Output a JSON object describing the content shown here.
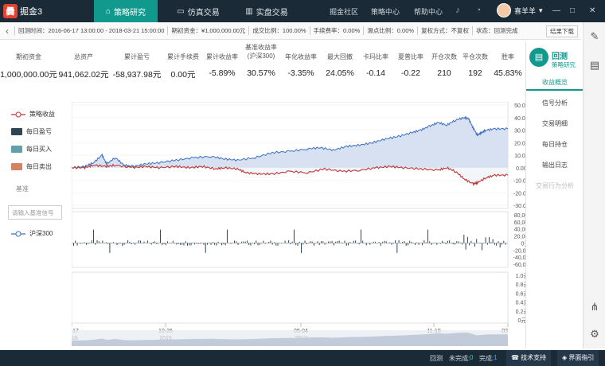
{
  "app": {
    "logo_mark": "爨",
    "logo_text": "掘金3"
  },
  "topnav": {
    "tabs": [
      {
        "label": "策略研究",
        "icon": "grad-cap-icon",
        "active": true
      },
      {
        "label": "仿真交易",
        "icon": "monitor-icon",
        "active": false
      },
      {
        "label": "实盘交易",
        "icon": "chart-bar-icon",
        "active": false
      }
    ],
    "links": [
      "掘金社区",
      "策略中心",
      "帮助中心"
    ],
    "user": "喜羊羊",
    "window_controls": [
      "—",
      "□",
      "✕"
    ]
  },
  "infobar": {
    "items": [
      "回测时间：2016-06-17 13:00:00 - 2018-03-21 15:00:00",
      "期初资金：¥1,000,000.00元",
      "成交比例：100.00%",
      "手续费率：0.00%",
      "滑点比例：0.00%",
      "复权方式：不复权",
      "状态：回测完成"
    ],
    "download_label": "结果下载"
  },
  "metrics": [
    {
      "label": "期初资金",
      "value": "1,000,000.00元"
    },
    {
      "label": "总资产",
      "value": "941,062.02元"
    },
    {
      "label": "累计盈亏",
      "value": "-58,937.98元"
    },
    {
      "label": "累计手续费",
      "value": "0.00元"
    },
    {
      "label": "累计收益率",
      "value": "-5.89%"
    },
    {
      "label": "基准收益率(沪深300)",
      "value": "30.57%"
    },
    {
      "label": "年化收益率",
      "value": "-3.35%"
    },
    {
      "label": "最大回撤",
      "value": "24.05%"
    },
    {
      "label": "卡玛比率",
      "value": "-0.14"
    },
    {
      "label": "夏普比率",
      "value": "-0.22"
    },
    {
      "label": "开仓次数",
      "value": "210"
    },
    {
      "label": "平仓次数",
      "value": "192"
    },
    {
      "label": "胜率",
      "value": "45.83%"
    }
  ],
  "legend": {
    "items": [
      {
        "label": "策略收益",
        "color": "#c23531",
        "kind": "line"
      },
      {
        "label": "每日盈亏",
        "color": "#2f4554",
        "kind": "box"
      },
      {
        "label": "每日买入",
        "color": "#61a0a8",
        "kind": "box"
      },
      {
        "label": "每日卖出",
        "color": "#d48265",
        "kind": "box"
      }
    ],
    "benchmark_title": "基准",
    "benchmark_placeholder": "请输入基准信号",
    "benchmark_item": {
      "label": "沪深300",
      "color": "#3a6fbf"
    }
  },
  "right_panel": {
    "title": "回测",
    "subtitle": "策略研究",
    "items": [
      {
        "label": "收益概览",
        "active": true,
        "dim": false
      },
      {
        "label": "信号分析",
        "active": false,
        "dim": false
      },
      {
        "label": "交易明细",
        "active": false,
        "dim": false
      },
      {
        "label": "每日持仓",
        "active": false,
        "dim": false
      },
      {
        "label": "输出日志",
        "active": false,
        "dim": false
      },
      {
        "label": "交易行为分析",
        "active": false,
        "dim": true
      }
    ]
  },
  "statusbar": {
    "label": "回测",
    "incomplete_label": "未完成:",
    "incomplete_count": "0",
    "complete_label": "完成:",
    "complete_count": "1",
    "btn_support": "技术支持",
    "btn_guide": "界面指引"
  },
  "chart_data": [
    {
      "type": "line",
      "name": "returns",
      "y_ticks": [
        "50.00%",
        "40.00%",
        "30.00%",
        "20.00%",
        "10.00%",
        "0.00%",
        "-10.00%",
        "-20.00%",
        "-30.00%"
      ],
      "ylim": [
        -30,
        50
      ],
      "x_ticks": [
        [
          "06-17",
          "2016"
        ],
        [
          "10-26",
          "2016"
        ],
        [
          "05-04",
          "2017"
        ],
        [
          "11-10",
          "2017"
        ],
        [
          "03",
          "20"
        ]
      ],
      "series": [
        {
          "name": "沪深300",
          "color": "#3a6fbf",
          "points": [
            [
              0,
              0
            ],
            [
              3,
              1
            ],
            [
              5,
              4
            ],
            [
              7,
              10
            ],
            [
              8,
              3
            ],
            [
              10,
              8
            ],
            [
              12,
              2
            ],
            [
              14,
              1
            ],
            [
              17,
              3
            ],
            [
              20,
              4
            ],
            [
              24,
              6
            ],
            [
              28,
              8
            ],
            [
              32,
              9
            ],
            [
              35,
              7
            ],
            [
              38,
              6
            ],
            [
              42,
              8
            ],
            [
              46,
              12
            ],
            [
              50,
              13
            ],
            [
              54,
              15
            ],
            [
              57,
              16
            ],
            [
              60,
              14
            ],
            [
              63,
              17
            ],
            [
              66,
              18
            ],
            [
              69,
              20
            ],
            [
              72,
              23
            ],
            [
              75,
              25
            ],
            [
              78,
              28
            ],
            [
              80,
              30
            ],
            [
              82,
              33
            ],
            [
              84,
              36
            ],
            [
              86,
              34
            ],
            [
              88,
              38
            ],
            [
              90,
              40
            ],
            [
              91,
              39
            ],
            [
              92,
              32
            ],
            [
              93,
              26
            ],
            [
              94,
              28
            ],
            [
              95,
              30
            ],
            [
              97,
              31
            ],
            [
              100,
              31
            ]
          ]
        },
        {
          "name": "策略收益",
          "color": "#c23531",
          "points": [
            [
              0,
              0
            ],
            [
              3,
              0
            ],
            [
              5,
              2
            ],
            [
              8,
              1
            ],
            [
              10,
              2
            ],
            [
              14,
              0
            ],
            [
              17,
              1
            ],
            [
              20,
              0
            ],
            [
              24,
              1
            ],
            [
              27,
              0
            ],
            [
              30,
              1
            ],
            [
              33,
              -1
            ],
            [
              35,
              0
            ],
            [
              38,
              -1
            ],
            [
              40,
              -4
            ],
            [
              43,
              -5
            ],
            [
              46,
              -5
            ],
            [
              50,
              -3
            ],
            [
              54,
              -4
            ],
            [
              58,
              -1
            ],
            [
              62,
              -3
            ],
            [
              66,
              -2
            ],
            [
              70,
              0
            ],
            [
              73,
              1
            ],
            [
              76,
              0
            ],
            [
              80,
              -1
            ],
            [
              84,
              -2
            ],
            [
              86,
              0
            ],
            [
              88,
              -3
            ],
            [
              90,
              -9
            ],
            [
              92,
              -13
            ],
            [
              93,
              -12
            ],
            [
              95,
              -8
            ],
            [
              97,
              -6
            ],
            [
              100,
              -6
            ]
          ]
        }
      ]
    },
    {
      "type": "bar",
      "name": "daily_pnl",
      "y_ticks": [
        "80,000元",
        "60,000元",
        "40,000元",
        "20,000元",
        "0元",
        "-20,000元",
        "-40,000元",
        "-60,000元"
      ],
      "ylim": [
        -60000,
        80000
      ]
    },
    {
      "type": "bar",
      "name": "daily_trades",
      "y_ticks": [
        "1.0元",
        "0.8元",
        "0.6元",
        "0.4元",
        "0.2元",
        "0元"
      ],
      "ylim": [
        0,
        1
      ]
    }
  ]
}
